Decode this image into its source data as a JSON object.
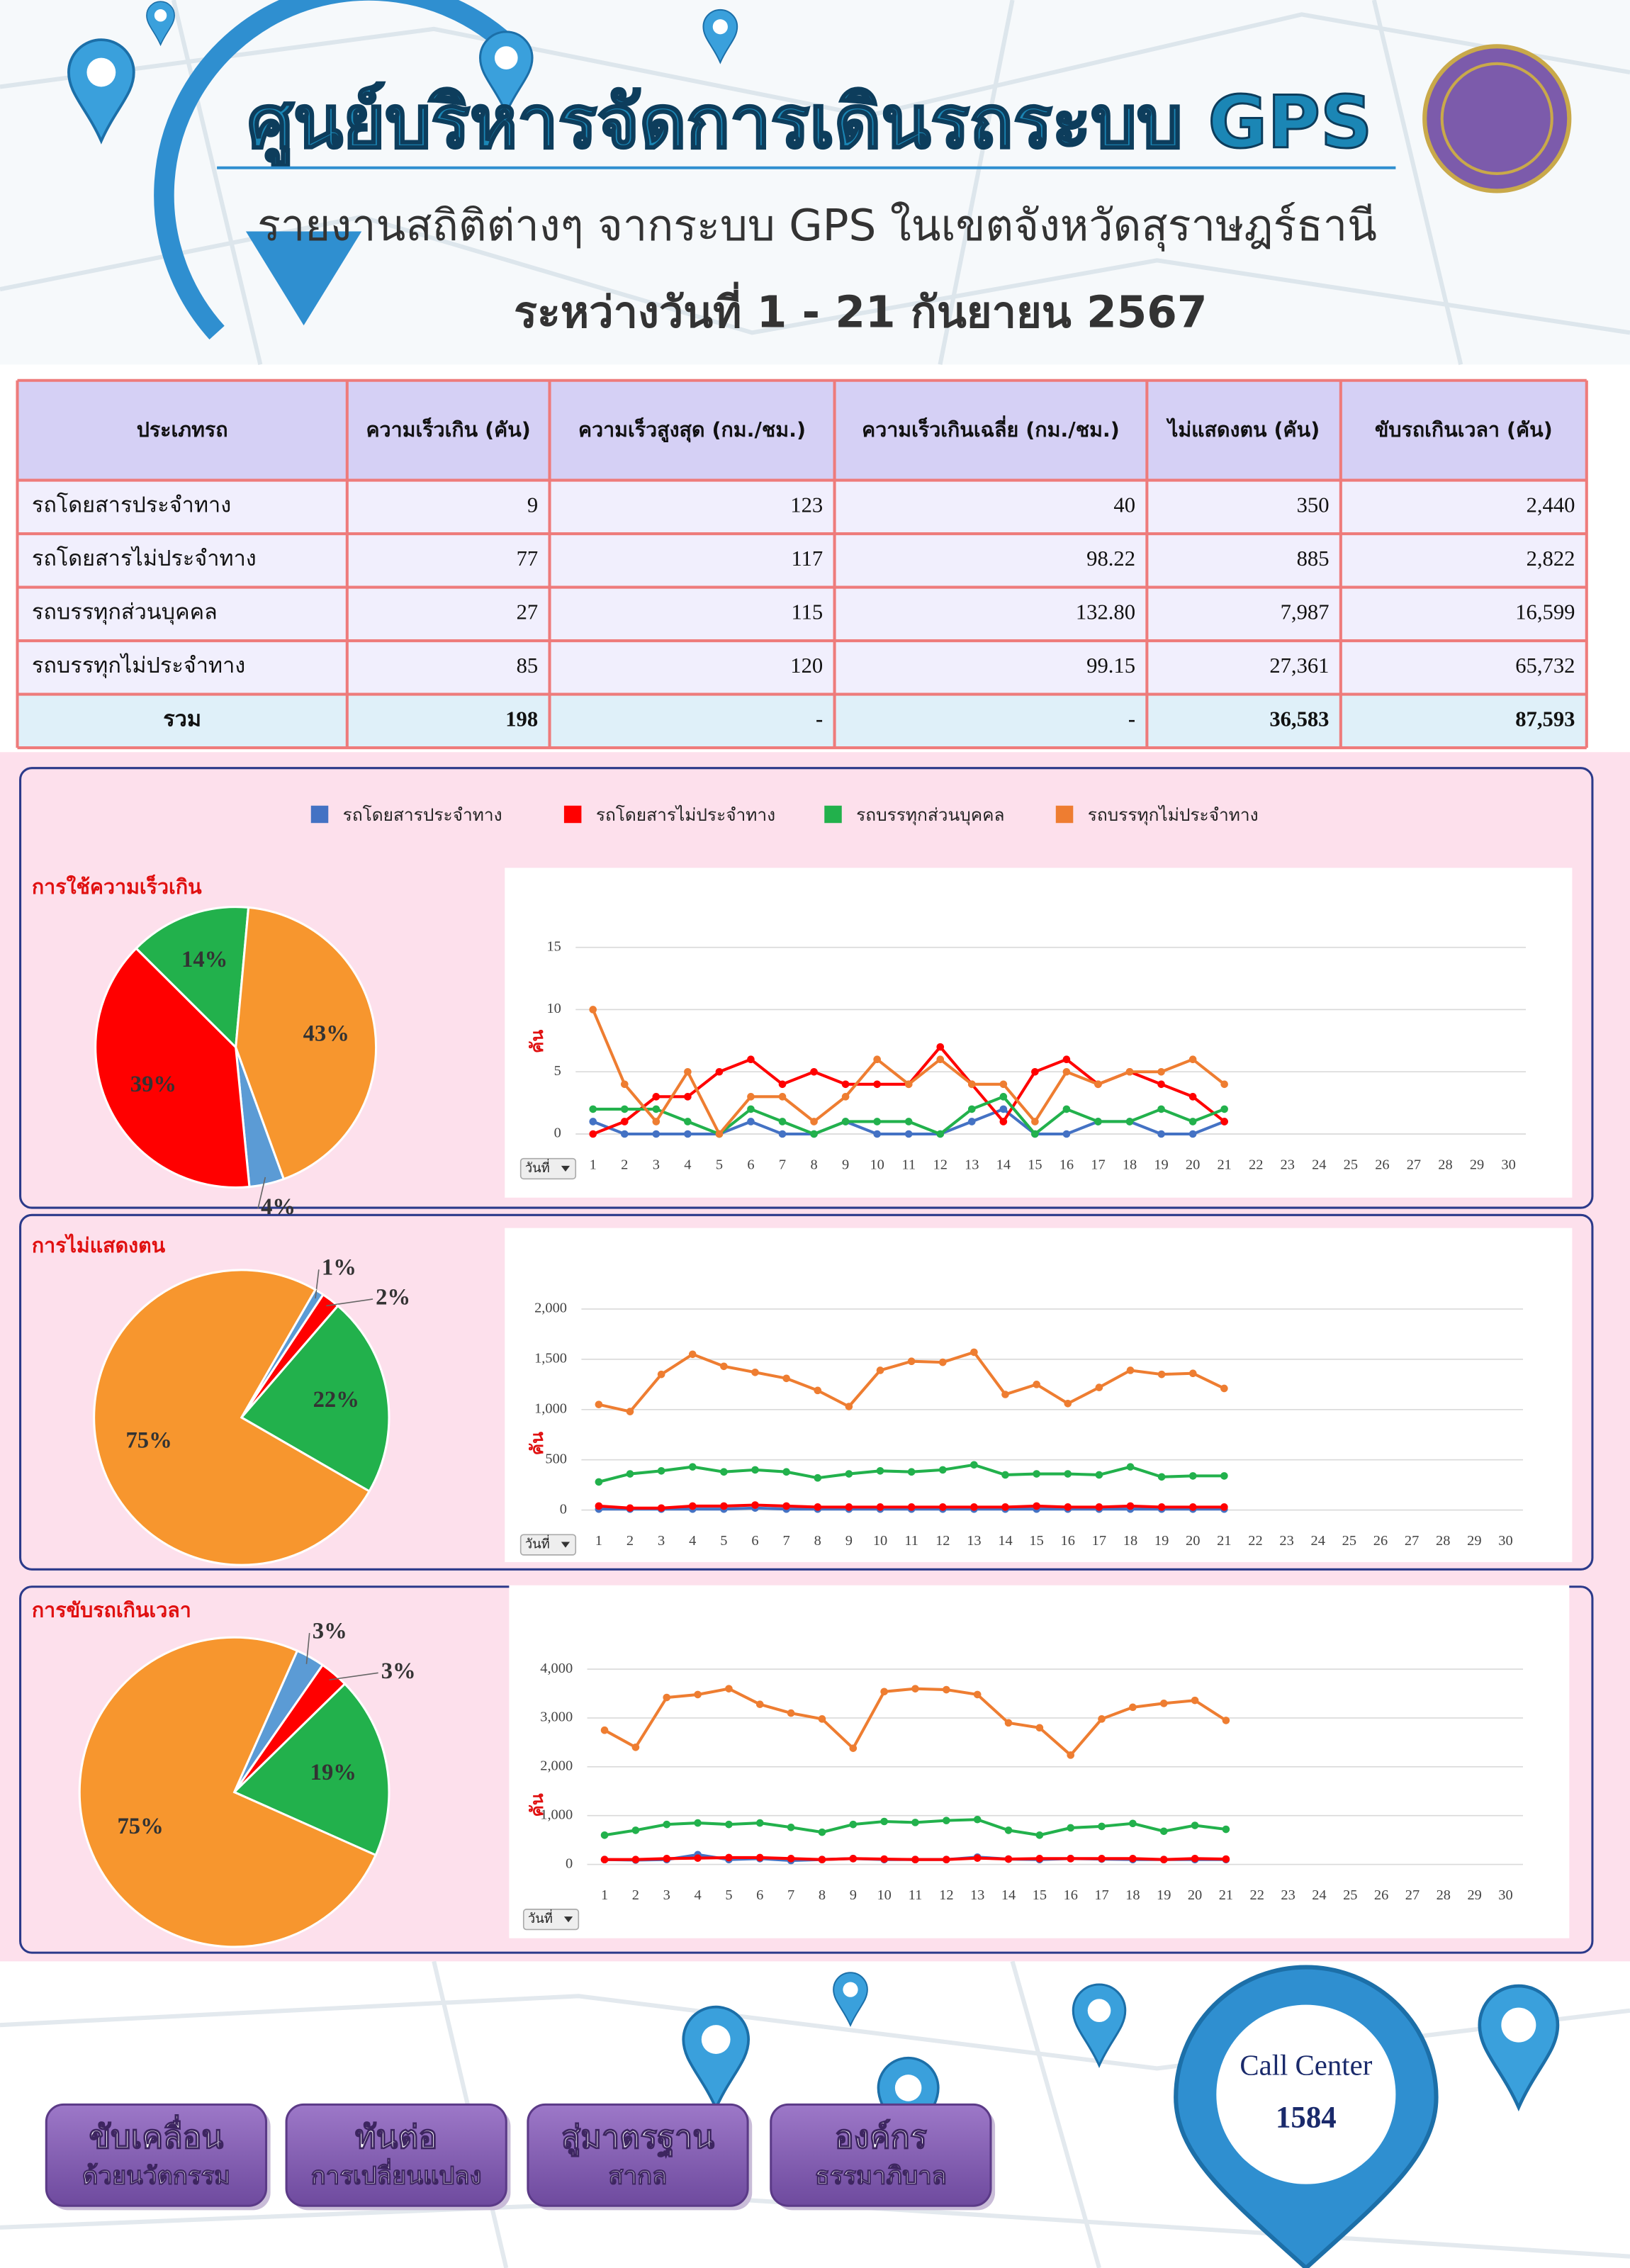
{
  "header": {
    "title": "ศูนย์บริหารจัดการเดินรถระบบ GPS",
    "subtitle": "รายงานสถิติต่างๆ จากระบบ GPS ในเขตจังหวัดสุราษฎร์ธานี",
    "date": "ระหว่างวันที่ 1 - 21 กันยายน 2567"
  },
  "table": {
    "header": [
      "ประเภทรถ",
      "ความเร็วเกิน (คัน)",
      "ความเร็วสูงสุด (กม./ชม.)",
      "ความเร็วเกินเฉลี่ย (กม./ชม.)",
      "ไม่แสดงตน (คัน)",
      "ขับรถเกินเวลา (คัน)"
    ],
    "rows": [
      [
        "รถโดยสารประจำทาง",
        "9",
        "123",
        "40",
        "350",
        "2,440"
      ],
      [
        "รถโดยสารไม่ประจำทาง",
        "77",
        "117",
        "98.22",
        "885",
        "2,822"
      ],
      [
        "รถบรรทุกส่วนบุคคล",
        "27",
        "115",
        "132.80",
        "7,987",
        "16,599"
      ],
      [
        "รถบรรทุกไม่ประจำทาง",
        "85",
        "120",
        "99.15",
        "27,361",
        "65,732"
      ],
      [
        "รวม",
        "198",
        "-",
        "-",
        "36,583",
        "87,593"
      ]
    ]
  },
  "chart_data": [
    {
      "type": "pie",
      "title": "การใช้ความเร็วเกิน",
      "values": [
        4,
        39,
        14,
        43
      ],
      "value_labels": [
        "4%",
        "39%",
        "14%",
        "43%"
      ],
      "colors": [
        "#5b9bd5",
        "#ff0000",
        "#22b14c",
        "#f7962e"
      ]
    },
    {
      "type": "line",
      "y_label": "คัน",
      "filter_label": "วันที่",
      "x": [
        1,
        2,
        3,
        4,
        5,
        6,
        7,
        8,
        9,
        10,
        11,
        12,
        13,
        14,
        15,
        16,
        17,
        18,
        19,
        20,
        21
      ],
      "xlim": [
        1,
        30
      ],
      "xticks": [
        1,
        2,
        3,
        4,
        5,
        6,
        7,
        8,
        9,
        10,
        11,
        12,
        13,
        14,
        15,
        16,
        17,
        18,
        19,
        20,
        21,
        22,
        23,
        24,
        25,
        26,
        27,
        28,
        29,
        30
      ],
      "ylim": [
        0,
        15
      ],
      "yticks": [
        0,
        5,
        10,
        15
      ],
      "grid": true,
      "series": [
        {
          "name": "รถโดยสารประจำทาง",
          "color": "#4472c4",
          "values": [
            1,
            0,
            0,
            0,
            0,
            1,
            0,
            0,
            1,
            0,
            0,
            0,
            1,
            2,
            0,
            0,
            1,
            1,
            0,
            0,
            1
          ]
        },
        {
          "name": "รถโดยสารไม่ประจำทาง",
          "color": "#ff0000",
          "values": [
            0,
            1,
            3,
            3,
            5,
            6,
            4,
            5,
            4,
            4,
            4,
            7,
            4,
            1,
            5,
            6,
            4,
            5,
            4,
            3,
            1
          ]
        },
        {
          "name": "รถบรรทุกส่วนบุคคล",
          "color": "#22b14c",
          "values": [
            2,
            2,
            2,
            1,
            0,
            2,
            1,
            0,
            1,
            1,
            1,
            0,
            2,
            3,
            0,
            2,
            1,
            1,
            2,
            1,
            2
          ]
        },
        {
          "name": "รถบรรทุกไม่ประจำทาง",
          "color": "#ee7d31",
          "values": [
            10,
            4,
            1,
            5,
            0,
            3,
            3,
            1,
            3,
            6,
            4,
            6,
            4,
            4,
            1,
            5,
            4,
            5,
            5,
            6,
            4
          ]
        }
      ]
    },
    {
      "type": "pie",
      "title": "การไม่แสดงตน",
      "values": [
        1,
        2,
        22,
        75
      ],
      "value_labels": [
        "1%",
        "2%",
        "22%",
        "75%"
      ],
      "colors": [
        "#5b9bd5",
        "#ff0000",
        "#22b14c",
        "#f7962e"
      ]
    },
    {
      "type": "line",
      "y_label": "คัน",
      "filter_label": "วันที่",
      "x": [
        1,
        2,
        3,
        4,
        5,
        6,
        7,
        8,
        9,
        10,
        11,
        12,
        13,
        14,
        15,
        16,
        17,
        18,
        19,
        20,
        21
      ],
      "xlim": [
        1,
        30
      ],
      "xticks": [
        1,
        2,
        3,
        4,
        5,
        6,
        7,
        8,
        9,
        10,
        11,
        12,
        13,
        14,
        15,
        16,
        17,
        18,
        19,
        20,
        21,
        22,
        23,
        24,
        25,
        26,
        27,
        28,
        29,
        30
      ],
      "ylim": [
        0,
        2000
      ],
      "yticks": [
        0,
        500,
        {
          "value": 1000,
          "label": "1,000"
        },
        {
          "value": 1500,
          "label": "1,500"
        },
        {
          "value": 2000,
          "label": "2,000"
        }
      ],
      "grid": true,
      "series": [
        {
          "color": "#4472c4",
          "values": [
            10,
            10,
            10,
            10,
            10,
            20,
            10,
            10,
            10,
            10,
            10,
            10,
            10,
            10,
            10,
            10,
            10,
            10,
            10,
            10,
            10
          ]
        },
        {
          "color": "#ff0000",
          "values": [
            40,
            20,
            20,
            40,
            40,
            50,
            40,
            30,
            30,
            30,
            30,
            30,
            30,
            30,
            40,
            30,
            30,
            40,
            30,
            30,
            30
          ]
        },
        {
          "color": "#22b14c",
          "values": [
            280,
            360,
            390,
            430,
            380,
            400,
            380,
            320,
            360,
            390,
            380,
            400,
            450,
            350,
            360,
            360,
            350,
            430,
            330,
            340,
            340
          ]
        },
        {
          "color": "#ee7d31",
          "values": [
            1050,
            980,
            1350,
            1550,
            1430,
            1370,
            1310,
            1190,
            1030,
            1390,
            1480,
            1470,
            1570,
            1150,
            1250,
            1060,
            1220,
            1390,
            1350,
            1360,
            1210
          ]
        }
      ]
    },
    {
      "type": "pie",
      "title": "การขับรถเกินเวลา",
      "values": [
        3,
        3,
        19,
        75
      ],
      "value_labels": [
        "3%",
        "3%",
        "19%",
        "75%"
      ],
      "colors": [
        "#5b9bd5",
        "#ff0000",
        "#22b14c",
        "#f7962e"
      ]
    },
    {
      "type": "line",
      "y_label": "คัน",
      "filter_label": "วันที่",
      "x": [
        1,
        2,
        3,
        4,
        5,
        6,
        7,
        8,
        9,
        10,
        11,
        12,
        13,
        14,
        15,
        16,
        17,
        18,
        19,
        20,
        21
      ],
      "xlim": [
        1,
        30
      ],
      "xticks": [
        1,
        2,
        3,
        4,
        5,
        6,
        7,
        8,
        9,
        10,
        11,
        12,
        13,
        14,
        15,
        16,
        17,
        18,
        19,
        20,
        21,
        22,
        23,
        24,
        25,
        26,
        27,
        28,
        29,
        30
      ],
      "ylim": [
        0,
        4000
      ],
      "yticks": [
        0,
        {
          "value": 1000,
          "label": "1,000"
        },
        {
          "value": 2000,
          "label": "2,000"
        },
        {
          "value": 3000,
          "label": "3,000"
        },
        {
          "value": 4000,
          "label": "4,000"
        }
      ],
      "grid": true,
      "series": [
        {
          "color": "#4472c4",
          "values": [
            100,
            90,
            100,
            200,
            100,
            120,
            80,
            100,
            120,
            100,
            100,
            100,
            150,
            110,
            100,
            120,
            110,
            100,
            100,
            100,
            100
          ]
        },
        {
          "color": "#ff0000",
          "values": [
            100,
            100,
            120,
            130,
            140,
            140,
            120,
            100,
            120,
            110,
            100,
            100,
            130,
            110,
            120,
            120,
            120,
            120,
            100,
            120,
            110
          ]
        },
        {
          "color": "#22b14c",
          "values": [
            600,
            700,
            820,
            850,
            820,
            850,
            760,
            660,
            820,
            880,
            860,
            900,
            920,
            700,
            600,
            750,
            780,
            840,
            680,
            800,
            720
          ]
        },
        {
          "color": "#ee7d31",
          "values": [
            2750,
            2400,
            3420,
            3480,
            3600,
            3280,
            3100,
            2980,
            2380,
            3540,
            3600,
            3580,
            3480,
            2900,
            2800,
            2240,
            2980,
            3220,
            3300,
            3360,
            2950
          ]
        }
      ]
    }
  ],
  "footer": {
    "buttons": [
      [
        "ขับเคลื่อน",
        "ด้วยนวัตกรรม"
      ],
      [
        "ทันต่อ",
        "การเปลี่ยนแปลง"
      ],
      [
        "สู่มาตรฐาน",
        "สากล"
      ],
      [
        "องค์กร",
        "ธรรมาภิบาล"
      ]
    ],
    "call_center": "Call Center",
    "phone": "1584"
  }
}
